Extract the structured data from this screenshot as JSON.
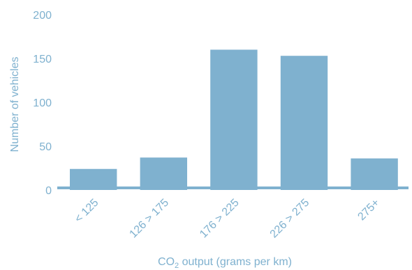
{
  "chart_data": {
    "type": "bar",
    "categories": [
      "< 125",
      "126 > 175",
      "176 > 225",
      "226 > 275",
      "275+"
    ],
    "values": [
      24,
      37,
      160,
      153,
      36
    ],
    "xlabel": {
      "prefix": "CO",
      "subscript": "2",
      "suffix": " output (grams per km)"
    },
    "ylabel": "Number of vehicles",
    "ylim": [
      0,
      200
    ],
    "yticks": [
      0,
      50,
      100,
      150,
      200
    ],
    "grid": false,
    "legend": "none",
    "colors": {
      "bar": "#7fb1cf",
      "baseline": "#7fb1cf",
      "text": "#7fb1cf"
    }
  }
}
